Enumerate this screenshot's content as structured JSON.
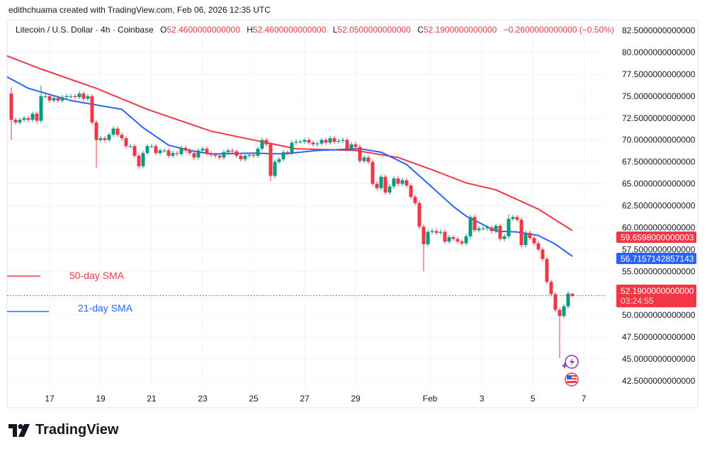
{
  "credit": "edithchuama created with TradingView.com, Feb 06, 2026 12:35 UTC",
  "header": {
    "symbol": "Litecoin / U.S. Dollar · 4h · Coinbase",
    "o_label": "O",
    "o": "52.4600000000000",
    "h_label": "H",
    "h": "52.4600000000000",
    "l_label": "L",
    "l": "52.0500000000000",
    "c_label": "C",
    "c": "52.1900000000000",
    "change": "−0.2600000000000 (−0.50%)"
  },
  "brand": "TradingView",
  "colors": {
    "up": "#089981",
    "down": "#f23645",
    "sma50": "#f23645",
    "sma21": "#2962ff",
    "grid": "#f0f3fa"
  },
  "chart_data": {
    "type": "candlestick",
    "interval": "4h",
    "ylim": [
      41.5,
      83.5
    ],
    "y_ticks": [
      "82.5000000000000",
      "80.0000000000000",
      "77.5000000000000",
      "75.0000000000000",
      "72.5000000000000",
      "70.0000000000000",
      "67.5000000000000",
      "65.0000000000000",
      "62.5000000000000",
      "60.0000000000000",
      "57.5000000000000",
      "55.0000000000000",
      "50.0000000000000",
      "47.5000000000000",
      "45.0000000000000",
      "42.5000000000000"
    ],
    "x_ticks": [
      {
        "label": "17",
        "i": 9
      },
      {
        "label": "19",
        "i": 21
      },
      {
        "label": "21",
        "i": 33
      },
      {
        "label": "23",
        "i": 45
      },
      {
        "label": "25",
        "i": 57
      },
      {
        "label": "27",
        "i": 69
      },
      {
        "label": "29",
        "i": 81
      },
      {
        "label": "Feb",
        "i": 98.5
      },
      {
        "label": "3",
        "i": 110.7
      },
      {
        "label": "5",
        "i": 122.7
      },
      {
        "label": "7",
        "i": 134.7
      }
    ],
    "first_open": 75.3,
    "closes": [
      72.3,
      72.0,
      72.3,
      72.5,
      72.3,
      73.0,
      72.2,
      75.0,
      75.0,
      74.5,
      74.8,
      74.5,
      74.9,
      75.0,
      75.0,
      74.9,
      75.3,
      74.7,
      75.0,
      72.0,
      70.0,
      70.2,
      70.0,
      70.6,
      71.3,
      70.6,
      70.2,
      69.3,
      69.3,
      68.2,
      67.0,
      68.5,
      69.3,
      69.3,
      68.5,
      68.8,
      68.8,
      68.2,
      68.5,
      68.4,
      69.1,
      68.8,
      68.5,
      68.0,
      68.8,
      69.0,
      68.5,
      68.3,
      68.2,
      68.0,
      68.6,
      68.8,
      68.7,
      68.2,
      67.8,
      68.2,
      68.3,
      68.2,
      69.0,
      70.0,
      69.5,
      65.9,
      67.5,
      67.8,
      68.6,
      68.5,
      69.7,
      69.8,
      69.8,
      70.0,
      69.7,
      69.5,
      69.6,
      70.0,
      69.7,
      70.2,
      69.8,
      69.9,
      70.0,
      69.0,
      69.5,
      69.2,
      67.6,
      68.0,
      67.5,
      65.0,
      64.5,
      65.8,
      64.0,
      64.7,
      65.6,
      65.0,
      65.4,
      64.8,
      63.5,
      62.8,
      60.1,
      58.1,
      59.5,
      59.6,
      59.4,
      59.5,
      58.4,
      58.9,
      58.7,
      58.4,
      58.2,
      59.0,
      61.2,
      59.7,
      59.9,
      59.9,
      60.0,
      59.6,
      60.2,
      58.7,
      59.0,
      61.0,
      61.2,
      60.9,
      58.0,
      59.4,
      58.8,
      58.2,
      57.5,
      56.4,
      53.8,
      52.4,
      50.6,
      49.9,
      51.0,
      52.46,
      52.19
    ],
    "wick_extremes": [
      {
        "i": 0,
        "low": 70.0,
        "high": 76.0
      },
      {
        "i": 7,
        "high": 76.2
      },
      {
        "i": 20,
        "low": 66.8
      },
      {
        "i": 61,
        "low": 65.3
      },
      {
        "i": 97,
        "low": 55.0
      },
      {
        "i": 117,
        "high": 61.5
      },
      {
        "i": 129,
        "low": 45.1
      },
      {
        "i": 132,
        "low": 52.05,
        "high": 52.46
      }
    ],
    "series": [
      {
        "name": "50-day SMA",
        "color": "#f23645",
        "points": [
          [
            -1,
            79.6
          ],
          [
            7,
            78.1
          ],
          [
            20,
            75.9
          ],
          [
            32,
            73.5
          ],
          [
            47,
            71.0
          ],
          [
            59,
            69.8
          ],
          [
            67,
            69.0
          ],
          [
            81,
            68.8
          ],
          [
            91,
            68.0
          ],
          [
            99,
            66.6
          ],
          [
            107,
            65.1
          ],
          [
            114,
            64.3
          ],
          [
            124,
            62.1
          ],
          [
            132,
            59.6598
          ]
        ]
      },
      {
        "name": "21-day SMA",
        "color": "#2962ff",
        "points": [
          [
            -1,
            77.2
          ],
          [
            4,
            75.9
          ],
          [
            14,
            74.5
          ],
          [
            20,
            74.0
          ],
          [
            26,
            73.5
          ],
          [
            31,
            71.4
          ],
          [
            37,
            69.4
          ],
          [
            42,
            68.8
          ],
          [
            47,
            68.4
          ],
          [
            57,
            68.5
          ],
          [
            64,
            68.4
          ],
          [
            72,
            68.8
          ],
          [
            82,
            69.0
          ],
          [
            87,
            68.6
          ],
          [
            93,
            67.2
          ],
          [
            99,
            64.6
          ],
          [
            104,
            62.4
          ],
          [
            107,
            61.3
          ],
          [
            114,
            59.6
          ],
          [
            119,
            59.5
          ],
          [
            124,
            59.1
          ],
          [
            128,
            58.1
          ],
          [
            132,
            56.7157
          ]
        ]
      }
    ],
    "labels": {
      "sma50_price": "59.6598000000003",
      "sma21_price": "56.7157142857143",
      "last_price": "52.1900000000000",
      "countdown": "03:24:55"
    }
  }
}
